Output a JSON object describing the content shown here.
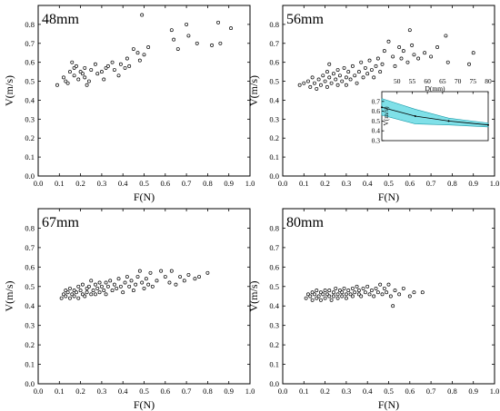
{
  "chart_data": [
    {
      "type": "scatter",
      "title": "48mm",
      "xlabel": "F(N)",
      "ylabel": "V(m/s)",
      "xlim": [
        0,
        1.0
      ],
      "ylim": [
        0,
        0.9
      ],
      "xticks": [
        "0.0",
        "0.1",
        "0.2",
        "0.3",
        "0.4",
        "0.5",
        "0.6",
        "0.7",
        "0.8",
        "0.9",
        "1.0"
      ],
      "yticks": [
        "0.0",
        "0.1",
        "0.2",
        "0.3",
        "0.4",
        "0.5",
        "0.6",
        "0.7",
        "0.8"
      ],
      "points": [
        [
          0.09,
          0.48
        ],
        [
          0.12,
          0.52
        ],
        [
          0.13,
          0.5
        ],
        [
          0.14,
          0.49
        ],
        [
          0.15,
          0.55
        ],
        [
          0.16,
          0.6
        ],
        [
          0.17,
          0.57
        ],
        [
          0.17,
          0.53
        ],
        [
          0.18,
          0.58
        ],
        [
          0.19,
          0.51
        ],
        [
          0.2,
          0.55
        ],
        [
          0.21,
          0.54
        ],
        [
          0.22,
          0.52
        ],
        [
          0.22,
          0.57
        ],
        [
          0.23,
          0.48
        ],
        [
          0.24,
          0.5
        ],
        [
          0.25,
          0.56
        ],
        [
          0.27,
          0.59
        ],
        [
          0.28,
          0.54
        ],
        [
          0.3,
          0.55
        ],
        [
          0.31,
          0.51
        ],
        [
          0.32,
          0.57
        ],
        [
          0.33,
          0.58
        ],
        [
          0.35,
          0.6
        ],
        [
          0.36,
          0.56
        ],
        [
          0.38,
          0.53
        ],
        [
          0.39,
          0.59
        ],
        [
          0.41,
          0.57
        ],
        [
          0.42,
          0.62
        ],
        [
          0.43,
          0.58
        ],
        [
          0.45,
          0.67
        ],
        [
          0.47,
          0.65
        ],
        [
          0.48,
          0.61
        ],
        [
          0.49,
          0.85
        ],
        [
          0.5,
          0.64
        ],
        [
          0.52,
          0.68
        ],
        [
          0.63,
          0.77
        ],
        [
          0.64,
          0.72
        ],
        [
          0.66,
          0.67
        ],
        [
          0.7,
          0.8
        ],
        [
          0.71,
          0.74
        ],
        [
          0.75,
          0.7
        ],
        [
          0.82,
          0.69
        ],
        [
          0.85,
          0.81
        ],
        [
          0.86,
          0.7
        ],
        [
          0.91,
          0.78
        ]
      ]
    },
    {
      "type": "scatter",
      "title": "56mm",
      "xlabel": "F(N)",
      "ylabel": "V(m/s)",
      "xlim": [
        0,
        1.0
      ],
      "ylim": [
        0,
        0.9
      ],
      "xticks": [
        "0.0",
        "0.1",
        "0.2",
        "0.3",
        "0.4",
        "0.5",
        "0.6",
        "0.7",
        "0.8",
        "0.9",
        "1.0"
      ],
      "yticks": [
        "0.0",
        "0.1",
        "0.2",
        "0.3",
        "0.4",
        "0.5",
        "0.6",
        "0.7",
        "0.8"
      ],
      "points": [
        [
          0.08,
          0.48
        ],
        [
          0.1,
          0.49
        ],
        [
          0.12,
          0.5
        ],
        [
          0.13,
          0.47
        ],
        [
          0.14,
          0.52
        ],
        [
          0.15,
          0.49
        ],
        [
          0.16,
          0.46
        ],
        [
          0.17,
          0.51
        ],
        [
          0.18,
          0.48
        ],
        [
          0.19,
          0.53
        ],
        [
          0.2,
          0.5
        ],
        [
          0.21,
          0.47
        ],
        [
          0.21,
          0.55
        ],
        [
          0.22,
          0.52
        ],
        [
          0.22,
          0.59
        ],
        [
          0.23,
          0.49
        ],
        [
          0.24,
          0.54
        ],
        [
          0.25,
          0.51
        ],
        [
          0.26,
          0.48
        ],
        [
          0.26,
          0.56
        ],
        [
          0.27,
          0.53
        ],
        [
          0.28,
          0.5
        ],
        [
          0.29,
          0.57
        ],
        [
          0.3,
          0.52
        ],
        [
          0.3,
          0.48
        ],
        [
          0.31,
          0.55
        ],
        [
          0.32,
          0.51
        ],
        [
          0.33,
          0.58
        ],
        [
          0.34,
          0.53
        ],
        [
          0.35,
          0.49
        ],
        [
          0.36,
          0.55
        ],
        [
          0.37,
          0.6
        ],
        [
          0.38,
          0.52
        ],
        [
          0.39,
          0.57
        ],
        [
          0.4,
          0.54
        ],
        [
          0.41,
          0.61
        ],
        [
          0.42,
          0.56
        ],
        [
          0.43,
          0.52
        ],
        [
          0.44,
          0.58
        ],
        [
          0.45,
          0.62
        ],
        [
          0.46,
          0.55
        ],
        [
          0.47,
          0.59
        ],
        [
          0.48,
          0.66
        ],
        [
          0.5,
          0.71
        ],
        [
          0.52,
          0.63
        ],
        [
          0.53,
          0.58
        ],
        [
          0.55,
          0.68
        ],
        [
          0.56,
          0.62
        ],
        [
          0.57,
          0.66
        ],
        [
          0.59,
          0.6
        ],
        [
          0.6,
          0.77
        ],
        [
          0.61,
          0.69
        ],
        [
          0.62,
          0.64
        ],
        [
          0.64,
          0.62
        ],
        [
          0.67,
          0.65
        ],
        [
          0.7,
          0.63
        ],
        [
          0.73,
          0.68
        ],
        [
          0.77,
          0.74
        ],
        [
          0.78,
          0.6
        ],
        [
          0.88,
          0.59
        ],
        [
          0.9,
          0.65
        ]
      ]
    },
    {
      "type": "scatter",
      "title": "67mm",
      "xlabel": "F(N)",
      "ylabel": "V(m/s)",
      "xlim": [
        0,
        1.0
      ],
      "ylim": [
        0,
        0.9
      ],
      "xticks": [
        "0.0",
        "0.1",
        "0.2",
        "0.3",
        "0.4",
        "0.5",
        "0.6",
        "0.7",
        "0.8",
        "0.9",
        "1.0"
      ],
      "yticks": [
        "0.0",
        "0.1",
        "0.2",
        "0.3",
        "0.4",
        "0.5",
        "0.6",
        "0.7",
        "0.8"
      ],
      "points": [
        [
          0.11,
          0.44
        ],
        [
          0.12,
          0.46
        ],
        [
          0.13,
          0.45
        ],
        [
          0.13,
          0.48
        ],
        [
          0.14,
          0.47
        ],
        [
          0.15,
          0.44
        ],
        [
          0.15,
          0.49
        ],
        [
          0.16,
          0.46
        ],
        [
          0.17,
          0.48
        ],
        [
          0.17,
          0.45
        ],
        [
          0.18,
          0.47
        ],
        [
          0.19,
          0.5
        ],
        [
          0.19,
          0.44
        ],
        [
          0.2,
          0.48
        ],
        [
          0.21,
          0.46
        ],
        [
          0.21,
          0.51
        ],
        [
          0.22,
          0.45
        ],
        [
          0.23,
          0.49
        ],
        [
          0.23,
          0.47
        ],
        [
          0.24,
          0.5
        ],
        [
          0.25,
          0.46
        ],
        [
          0.25,
          0.53
        ],
        [
          0.26,
          0.48
        ],
        [
          0.27,
          0.51
        ],
        [
          0.27,
          0.46
        ],
        [
          0.28,
          0.49
        ],
        [
          0.29,
          0.52
        ],
        [
          0.29,
          0.47
        ],
        [
          0.3,
          0.5
        ],
        [
          0.31,
          0.48
        ],
        [
          0.32,
          0.52
        ],
        [
          0.32,
          0.46
        ],
        [
          0.33,
          0.5
        ],
        [
          0.34,
          0.53
        ],
        [
          0.35,
          0.48
        ],
        [
          0.36,
          0.51
        ],
        [
          0.37,
          0.49
        ],
        [
          0.38,
          0.54
        ],
        [
          0.39,
          0.5
        ],
        [
          0.4,
          0.47
        ],
        [
          0.41,
          0.52
        ],
        [
          0.42,
          0.55
        ],
        [
          0.43,
          0.5
        ],
        [
          0.44,
          0.53
        ],
        [
          0.45,
          0.48
        ],
        [
          0.46,
          0.51
        ],
        [
          0.47,
          0.55
        ],
        [
          0.48,
          0.58
        ],
        [
          0.49,
          0.52
        ],
        [
          0.5,
          0.49
        ],
        [
          0.51,
          0.54
        ],
        [
          0.52,
          0.51
        ],
        [
          0.53,
          0.57
        ],
        [
          0.54,
          0.5
        ],
        [
          0.56,
          0.53
        ],
        [
          0.58,
          0.58
        ],
        [
          0.6,
          0.55
        ],
        [
          0.62,
          0.52
        ],
        [
          0.63,
          0.58
        ],
        [
          0.65,
          0.51
        ],
        [
          0.67,
          0.55
        ],
        [
          0.69,
          0.53
        ],
        [
          0.71,
          0.56
        ],
        [
          0.74,
          0.54
        ],
        [
          0.76,
          0.55
        ],
        [
          0.8,
          0.57
        ]
      ]
    },
    {
      "type": "scatter",
      "title": "80mm",
      "xlabel": "F(N)",
      "ylabel": "V(m/s)",
      "xlim": [
        0,
        1.0
      ],
      "ylim": [
        0,
        0.9
      ],
      "xticks": [
        "0.0",
        "0.1",
        "0.2",
        "0.3",
        "0.4",
        "0.5",
        "0.6",
        "0.7",
        "0.8",
        "0.9",
        "1.0"
      ],
      "yticks": [
        "0.0",
        "0.1",
        "0.2",
        "0.3",
        "0.4",
        "0.5",
        "0.6",
        "0.7",
        "0.8"
      ],
      "points": [
        [
          0.11,
          0.44
        ],
        [
          0.12,
          0.46
        ],
        [
          0.13,
          0.45
        ],
        [
          0.14,
          0.47
        ],
        [
          0.14,
          0.43
        ],
        [
          0.15,
          0.46
        ],
        [
          0.16,
          0.44
        ],
        [
          0.16,
          0.48
        ],
        [
          0.17,
          0.45
        ],
        [
          0.18,
          0.47
        ],
        [
          0.18,
          0.43
        ],
        [
          0.19,
          0.46
        ],
        [
          0.2,
          0.48
        ],
        [
          0.2,
          0.44
        ],
        [
          0.21,
          0.46
        ],
        [
          0.22,
          0.45
        ],
        [
          0.22,
          0.48
        ],
        [
          0.23,
          0.43
        ],
        [
          0.24,
          0.47
        ],
        [
          0.24,
          0.45
        ],
        [
          0.25,
          0.49
        ],
        [
          0.26,
          0.46
        ],
        [
          0.26,
          0.44
        ],
        [
          0.27,
          0.48
        ],
        [
          0.28,
          0.45
        ],
        [
          0.28,
          0.47
        ],
        [
          0.29,
          0.49
        ],
        [
          0.3,
          0.46
        ],
        [
          0.3,
          0.44
        ],
        [
          0.31,
          0.48
        ],
        [
          0.32,
          0.46
        ],
        [
          0.33,
          0.49
        ],
        [
          0.33,
          0.45
        ],
        [
          0.34,
          0.47
        ],
        [
          0.35,
          0.5
        ],
        [
          0.36,
          0.46
        ],
        [
          0.36,
          0.48
        ],
        [
          0.37,
          0.45
        ],
        [
          0.38,
          0.49
        ],
        [
          0.39,
          0.47
        ],
        [
          0.4,
          0.5
        ],
        [
          0.41,
          0.46
        ],
        [
          0.42,
          0.48
        ],
        [
          0.43,
          0.45
        ],
        [
          0.44,
          0.49
        ],
        [
          0.45,
          0.47
        ],
        [
          0.46,
          0.51
        ],
        [
          0.47,
          0.46
        ],
        [
          0.48,
          0.49
        ],
        [
          0.49,
          0.47
        ],
        [
          0.5,
          0.51
        ],
        [
          0.51,
          0.45
        ],
        [
          0.52,
          0.4
        ],
        [
          0.53,
          0.48
        ],
        [
          0.55,
          0.46
        ],
        [
          0.57,
          0.49
        ],
        [
          0.6,
          0.45
        ],
        [
          0.62,
          0.47
        ],
        [
          0.66,
          0.47
        ]
      ]
    }
  ],
  "inset": {
    "type": "area",
    "xlabel": "D(mm)",
    "ylabel": "V(m/s)",
    "xlim": [
      45,
      80
    ],
    "ylim": [
      0.3,
      0.8
    ],
    "xticks": [
      "50",
      "55",
      "60",
      "65",
      "70",
      "75",
      "80"
    ],
    "yticks": [
      "0.3",
      "0.4",
      "0.5",
      "0.6",
      "0.7"
    ],
    "x": [
      45,
      56,
      67,
      80
    ],
    "mean": [
      0.64,
      0.55,
      0.5,
      0.46
    ],
    "upper": [
      0.73,
      0.62,
      0.53,
      0.48
    ],
    "lower": [
      0.56,
      0.47,
      0.46,
      0.44
    ],
    "band_color": "#7fe0e8",
    "line_color": "#1a9aa8"
  }
}
